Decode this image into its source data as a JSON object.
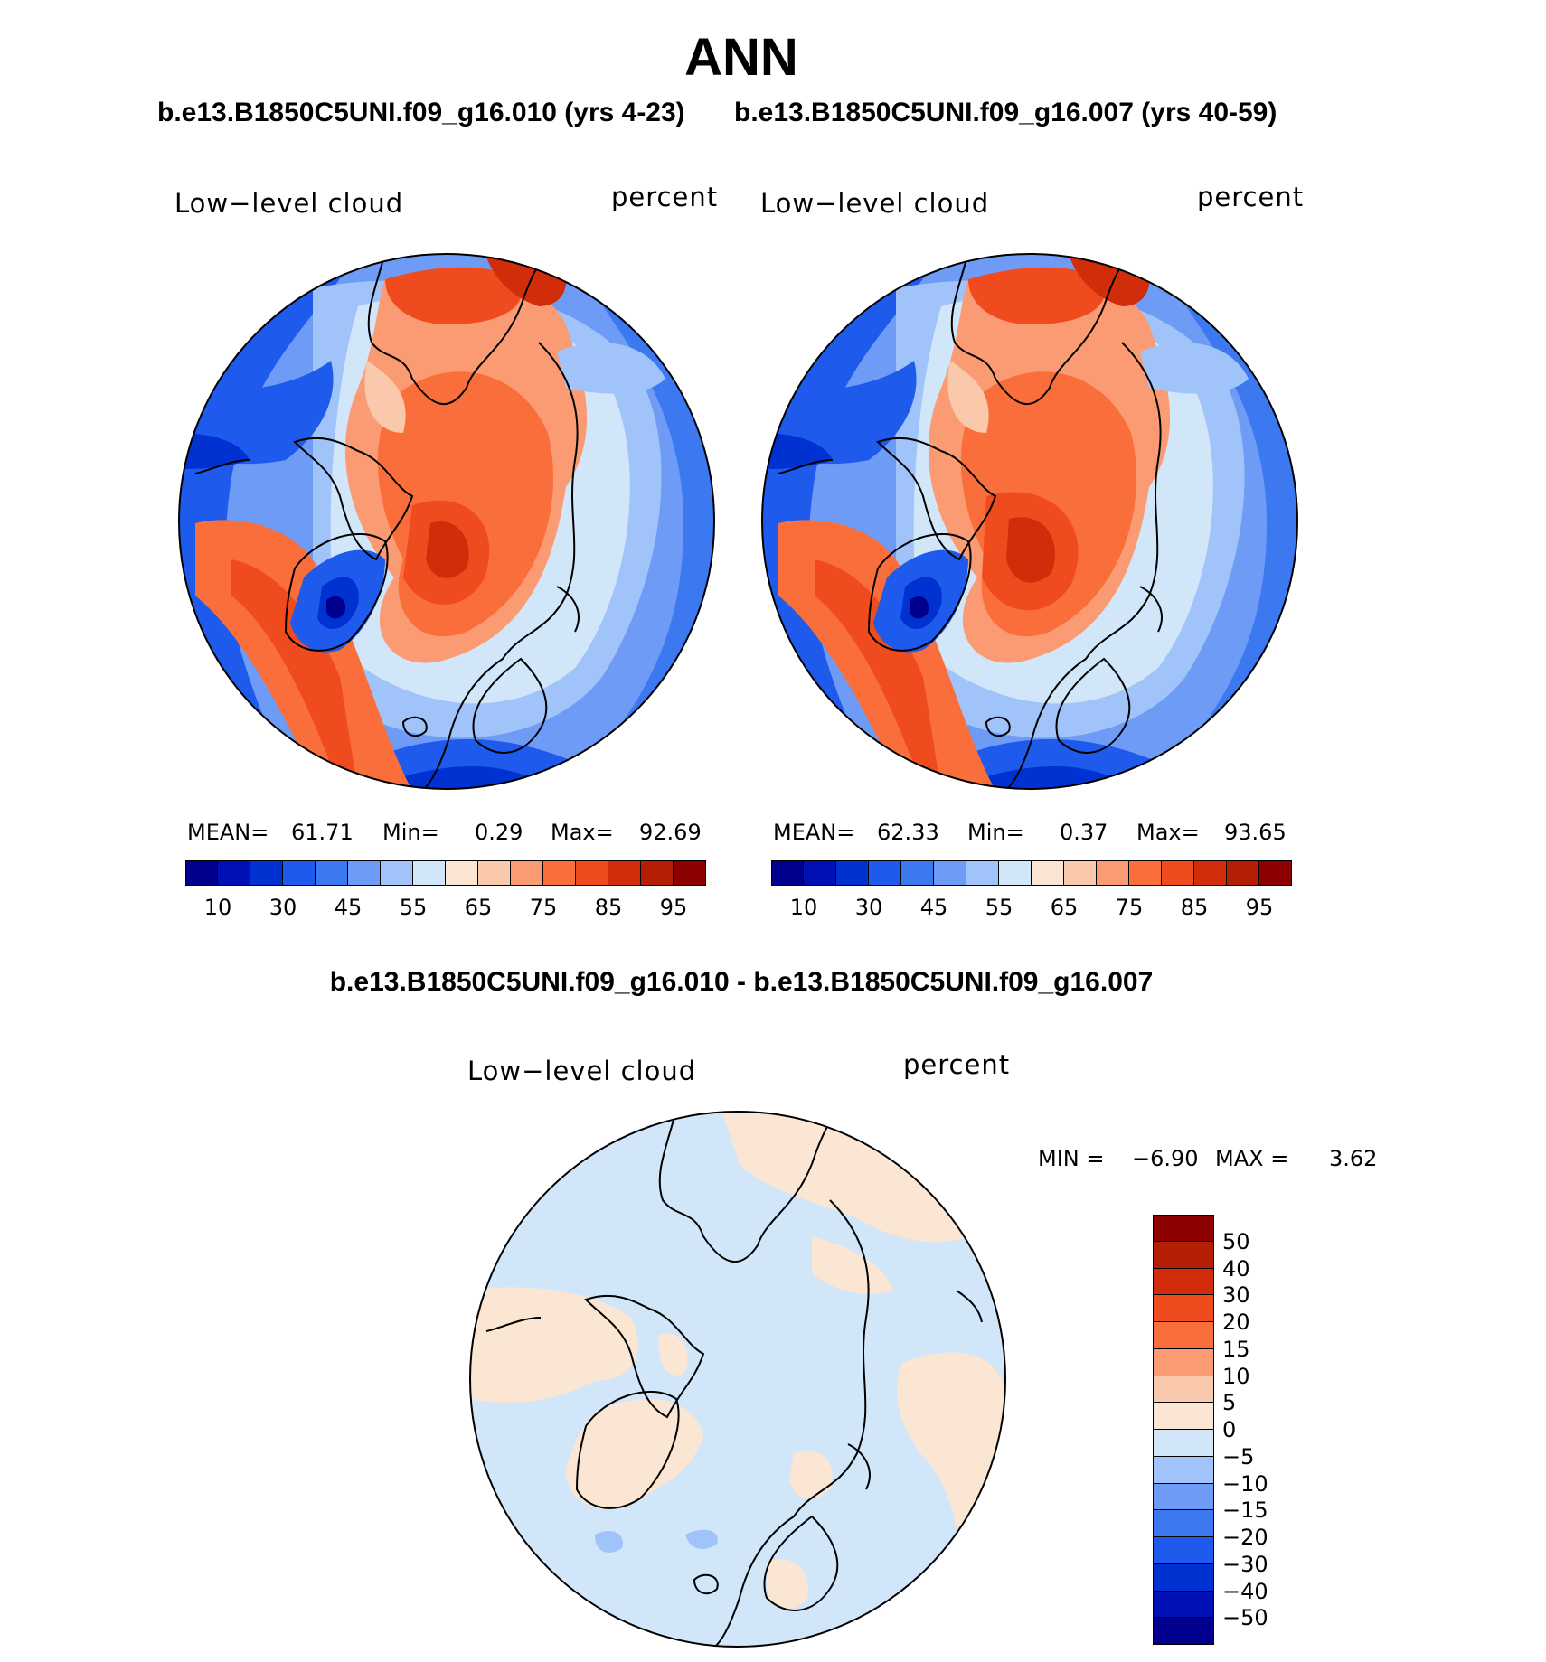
{
  "title": "ANN",
  "case1_title": "b.e13.B1850C5UNI.f09_g16.010 (yrs 4-23)",
  "case2_title": "b.e13.B1850C5UNI.f09_g16.007 (yrs 40-59)",
  "diff_title": "b.e13.B1850C5UNI.f09_g16.010 - b.e13.B1850C5UNI.f09_g16.007",
  "panels": [
    {
      "variable": "Low−level cloud",
      "units": "percent",
      "mean_label": "MEAN=",
      "mean": "61.71",
      "min_label": "Min=",
      "min": "0.29",
      "max_label": "Max=",
      "max": "92.69"
    },
    {
      "variable": "Low−level cloud",
      "units": "percent",
      "mean_label": "MEAN=",
      "mean": "62.33",
      "min_label": "Min=",
      "min": "0.37",
      "max_label": "Max=",
      "max": "93.65"
    }
  ],
  "diff_panel": {
    "variable": "Low−level cloud",
    "units": "percent",
    "min_label": "MIN =",
    "min": "−6.90",
    "max_label": "MAX =",
    "max": "3.62"
  },
  "colorbar_main": {
    "colors": [
      "#00008c",
      "#0010b4",
      "#0032d2",
      "#1e5aeb",
      "#3c78f0",
      "#6e9bf5",
      "#a0c3fa",
      "#d2e6fa",
      "#fae6d2",
      "#fac8aa",
      "#fa9b73",
      "#fa6e3c",
      "#f04b1e",
      "#d22d0a",
      "#b41e05",
      "#8c0000"
    ],
    "labels": [
      "10",
      "30",
      "45",
      "55",
      "65",
      "75",
      "85",
      "95"
    ]
  },
  "colorbar_diff": {
    "colors": [
      "#8c0000",
      "#b41e05",
      "#d22d0a",
      "#f04b1e",
      "#fa6e3c",
      "#fa9b73",
      "#fac8aa",
      "#fae6d2",
      "#d2e6fa",
      "#a0c3fa",
      "#6e9bf5",
      "#3c78f0",
      "#1e5aeb",
      "#0032d2",
      "#0010b4",
      "#00008c"
    ],
    "labels": [
      "50",
      "40",
      "30",
      "20",
      "15",
      "10",
      "5",
      "0",
      "−5",
      "−10",
      "−15",
      "−20",
      "−30",
      "−40",
      "−50"
    ]
  }
}
